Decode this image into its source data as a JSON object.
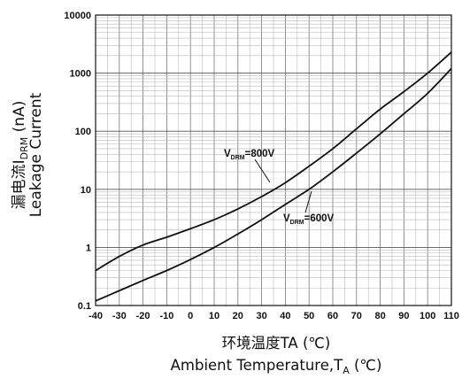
{
  "chart_data": {
    "type": "line",
    "y_scale": "log",
    "grid": true,
    "ylim": [
      0.1,
      10000
    ],
    "xlim": [
      -40,
      110
    ],
    "x_ticks": [
      -40,
      -30,
      -20,
      -10,
      0,
      10,
      20,
      30,
      40,
      50,
      60,
      70,
      80,
      90,
      100,
      110
    ],
    "y_tick_labels": [
      "10000",
      "1000",
      "100",
      "10",
      "1",
      "0.1"
    ],
    "y_ticks": [
      10000,
      1000,
      100,
      10,
      1,
      0.1
    ],
    "ylabel_line1": "漏电流I",
    "ylabel_line1_sub": "DRM",
    "ylabel_line1_unit": " (nA)",
    "ylabel_line2": "Leakage Current",
    "xlabel_line1": "环境温度TA (℃)",
    "xlabel_line2_main": "Ambient Temperature,T",
    "xlabel_line2_sub": "A",
    "xlabel_line2_unit": " (℃)",
    "series": [
      {
        "annotation_main": "V",
        "annotation_sub": "DRM",
        "annotation_value": "=800V",
        "color": "#111111",
        "x": [
          -40,
          -30,
          -20,
          -10,
          0,
          10,
          20,
          30,
          40,
          50,
          60,
          70,
          80,
          90,
          100,
          110
        ],
        "y": [
          0.4,
          0.7,
          1.1,
          1.5,
          2.1,
          3.0,
          4.6,
          7.5,
          13,
          25,
          50,
          110,
          240,
          480,
          1000,
          2300
        ]
      },
      {
        "annotation_main": "V",
        "annotation_sub": "DRM",
        "annotation_value": "=600V",
        "color": "#111111",
        "x": [
          -40,
          -30,
          -20,
          -10,
          0,
          10,
          20,
          30,
          40,
          50,
          60,
          70,
          80,
          90,
          100,
          110
        ],
        "y": [
          0.12,
          0.18,
          0.27,
          0.4,
          0.62,
          1.0,
          1.7,
          3.0,
          5.5,
          10,
          20,
          42,
          90,
          200,
          450,
          1200
        ]
      }
    ]
  }
}
